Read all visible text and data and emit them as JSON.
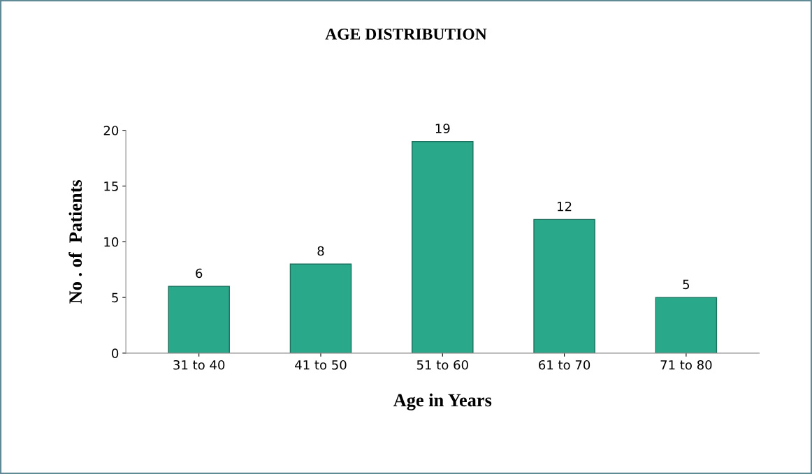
{
  "chart_data": {
    "type": "bar",
    "title": "AGE DISTRIBUTION",
    "xlabel": "Age in Years",
    "ylabel": "No . of  Patients",
    "categories": [
      "31 to 40",
      "41 to 50",
      "51 to 60",
      "61 to 70",
      "71 to 80"
    ],
    "values": [
      6,
      8,
      19,
      12,
      5
    ],
    "color": "#2aa88a",
    "ylim": [
      0,
      20
    ],
    "yticks": [
      0,
      5,
      10,
      15,
      20
    ],
    "data_labels": true,
    "grid": false,
    "legend": false
  }
}
